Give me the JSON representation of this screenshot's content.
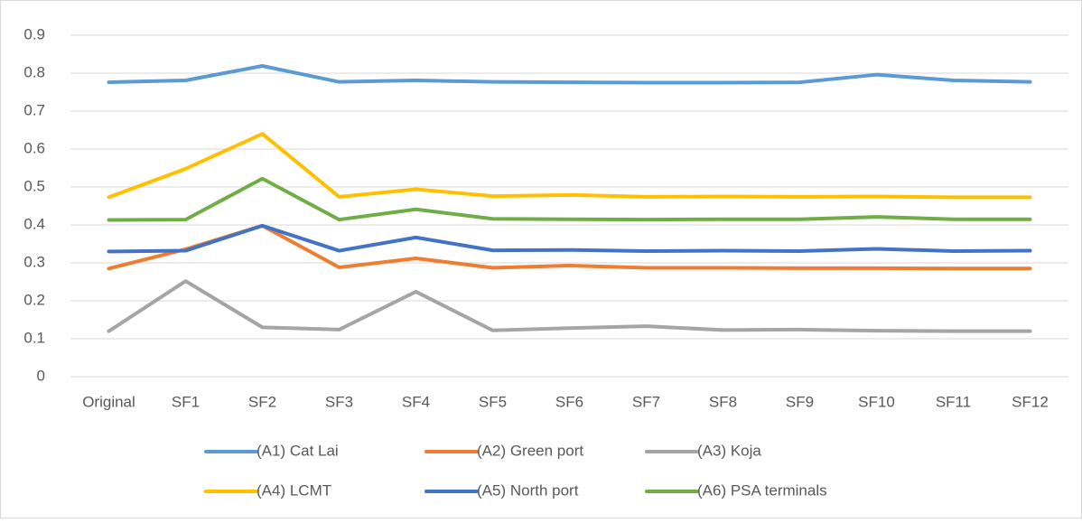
{
  "chart_data": {
    "type": "line",
    "categories": [
      "Original",
      "SF1",
      "SF2",
      "SF3",
      "SF4",
      "SF5",
      "SF6",
      "SF7",
      "SF8",
      "SF9",
      "SF10",
      "SF11",
      "SF12"
    ],
    "series": [
      {
        "name": "(A1) Cat Lai",
        "color": "#5B9BD5",
        "values": [
          0.776,
          0.781,
          0.819,
          0.777,
          0.781,
          0.777,
          0.776,
          0.775,
          0.775,
          0.776,
          0.796,
          0.781,
          0.777
        ]
      },
      {
        "name": "(A2) Green port",
        "color": "#ED7D31",
        "values": [
          0.285,
          0.336,
          0.398,
          0.288,
          0.312,
          0.287,
          0.293,
          0.287,
          0.287,
          0.286,
          0.286,
          0.285,
          0.285
        ]
      },
      {
        "name": "(A3) Koja",
        "color": "#A5A5A5",
        "values": [
          0.12,
          0.252,
          0.13,
          0.124,
          0.224,
          0.122,
          0.128,
          0.133,
          0.123,
          0.124,
          0.121,
          0.12,
          0.12
        ]
      },
      {
        "name": "(A4) LCMT",
        "color": "#FFC000",
        "values": [
          0.473,
          0.548,
          0.64,
          0.474,
          0.494,
          0.476,
          0.479,
          0.474,
          0.475,
          0.474,
          0.475,
          0.473,
          0.473
        ]
      },
      {
        "name": "(A5) North port",
        "color": "#4472C4",
        "values": [
          0.33,
          0.332,
          0.398,
          0.332,
          0.367,
          0.333,
          0.334,
          0.331,
          0.332,
          0.331,
          0.337,
          0.331,
          0.332
        ]
      },
      {
        "name": "(A6) PSA terminals",
        "color": "#70AD47",
        "values": [
          0.413,
          0.414,
          0.522,
          0.414,
          0.441,
          0.416,
          0.415,
          0.414,
          0.415,
          0.415,
          0.421,
          0.415,
          0.415
        ]
      }
    ],
    "ylim": [
      0,
      0.9
    ],
    "yticks": [
      0,
      0.1,
      0.2,
      0.3,
      0.4,
      0.5,
      0.6,
      0.7,
      0.8,
      0.9
    ],
    "grid": true,
    "legend": "bottom"
  }
}
